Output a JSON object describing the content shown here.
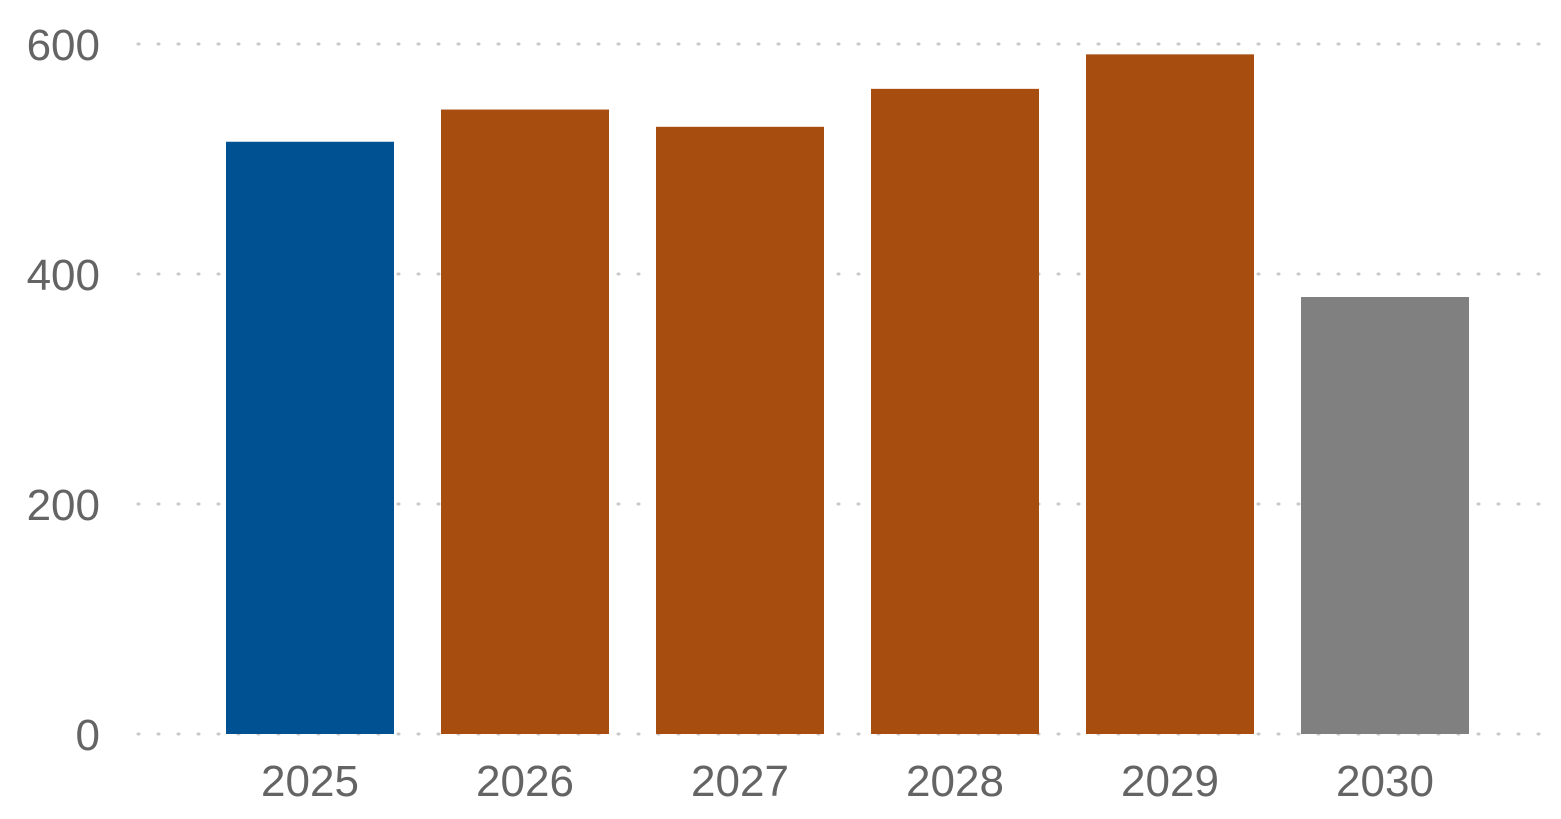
{
  "chart_data": {
    "type": "bar",
    "categories": [
      "2025",
      "2026",
      "2027",
      "2028",
      "2029",
      "2030"
    ],
    "values": [
      515,
      543,
      528,
      561,
      591,
      380
    ],
    "colors": [
      "#005191",
      "#a84d10",
      "#a84d10",
      "#a84d10",
      "#a84d10",
      "#808080"
    ],
    "ylim": [
      0,
      600
    ],
    "yticks": [
      "0",
      "200",
      "400",
      "600"
    ],
    "grid": true,
    "title": "",
    "xlabel": "",
    "ylabel": ""
  }
}
